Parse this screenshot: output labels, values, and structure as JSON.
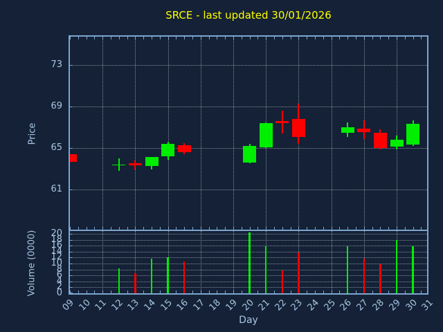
{
  "title": "SRCE - last updated 30/01/2026",
  "price_axis": {
    "label": "Price",
    "ticks": [
      73,
      69,
      65,
      61
    ]
  },
  "volume_axis": {
    "label": "Volume (0000)",
    "ticks": [
      20,
      18,
      16,
      14,
      12,
      10,
      8,
      6,
      4,
      2,
      0
    ]
  },
  "x_axis": {
    "label": "Day",
    "tick_labels": [
      "09",
      "10",
      "11",
      "12",
      "13",
      "14",
      "15",
      "16",
      "17",
      "18",
      "19",
      "20",
      "21",
      "22",
      "23",
      "24",
      "25",
      "26",
      "27",
      "28",
      "29",
      "30",
      "31"
    ]
  },
  "colors": {
    "background": "#142136",
    "frame": "#7ca6cf",
    "text": "#a9c6e3",
    "title": "#ffff00",
    "grid": "#c3c8d2",
    "up": "#00ee00",
    "down": "#ff0000"
  },
  "chart_data": {
    "type": "candlestick+volume",
    "title": "SRCE - last updated 30/01/2026",
    "xlabel": "Day",
    "ylabel_price": "Price",
    "ylabel_volume": "Volume (0000)",
    "price_ticks": [
      61,
      65,
      69,
      73
    ],
    "price_ylim": [
      57.0,
      75.9
    ],
    "volume_ticks": [
      0,
      2,
      4,
      6,
      8,
      10,
      12,
      14,
      16,
      18,
      20
    ],
    "volume_ylim": [
      0,
      21.4
    ],
    "x_days": [
      "09",
      "10",
      "11",
      "12",
      "13",
      "14",
      "15",
      "16",
      "17",
      "18",
      "19",
      "20",
      "21",
      "22",
      "23",
      "24",
      "25",
      "26",
      "27",
      "28",
      "29",
      "30",
      "31"
    ],
    "grid": true,
    "series": [
      {
        "day": "09",
        "open": 64.4,
        "high": 64.4,
        "low": 63.7,
        "close": 63.7,
        "volume": 0,
        "direction": "down"
      },
      {
        "day": "12",
        "open": 63.35,
        "high": 64.0,
        "low": 62.85,
        "close": 63.45,
        "volume": 8.4,
        "direction": "up"
      },
      {
        "day": "13",
        "open": 63.55,
        "high": 63.85,
        "low": 62.95,
        "close": 63.35,
        "volume": 6.7,
        "direction": "down"
      },
      {
        "day": "14",
        "open": 63.3,
        "high": 64.15,
        "low": 62.95,
        "close": 64.15,
        "volume": 11.6,
        "direction": "up"
      },
      {
        "day": "15",
        "open": 64.25,
        "high": 65.6,
        "low": 63.9,
        "close": 65.45,
        "volume": 12.1,
        "direction": "up"
      },
      {
        "day": "16",
        "open": 65.3,
        "high": 65.5,
        "low": 64.45,
        "close": 64.65,
        "volume": 10.7,
        "direction": "down"
      },
      {
        "day": "20",
        "open": 63.65,
        "high": 65.4,
        "low": 63.55,
        "close": 65.25,
        "volume": 20.5,
        "direction": "up"
      },
      {
        "day": "21",
        "open": 65.1,
        "high": 67.5,
        "low": 65.0,
        "close": 67.4,
        "volume": 15.8,
        "direction": "up"
      },
      {
        "day": "22",
        "open": 67.65,
        "high": 68.6,
        "low": 66.45,
        "close": 67.45,
        "volume": 7.7,
        "direction": "down"
      },
      {
        "day": "23",
        "open": 67.8,
        "high": 69.3,
        "low": 65.45,
        "close": 66.1,
        "volume": 13.7,
        "direction": "down"
      },
      {
        "day": "26",
        "open": 66.5,
        "high": 67.5,
        "low": 66.1,
        "close": 67.05,
        "volume": 15.8,
        "direction": "up"
      },
      {
        "day": "27",
        "open": 66.9,
        "high": 67.7,
        "low": 65.9,
        "close": 66.55,
        "volume": 11.6,
        "direction": "down"
      },
      {
        "day": "28",
        "open": 66.5,
        "high": 66.85,
        "low": 64.9,
        "close": 65.0,
        "volume": 9.8,
        "direction": "down"
      },
      {
        "day": "29",
        "open": 65.15,
        "high": 66.2,
        "low": 64.9,
        "close": 65.8,
        "volume": 17.9,
        "direction": "up"
      },
      {
        "day": "30",
        "open": 65.35,
        "high": 67.7,
        "low": 65.2,
        "close": 67.35,
        "volume": 15.8,
        "direction": "up"
      }
    ],
    "days_without_data": [
      "10",
      "11",
      "17",
      "18",
      "19",
      "24",
      "25",
      "31"
    ]
  }
}
